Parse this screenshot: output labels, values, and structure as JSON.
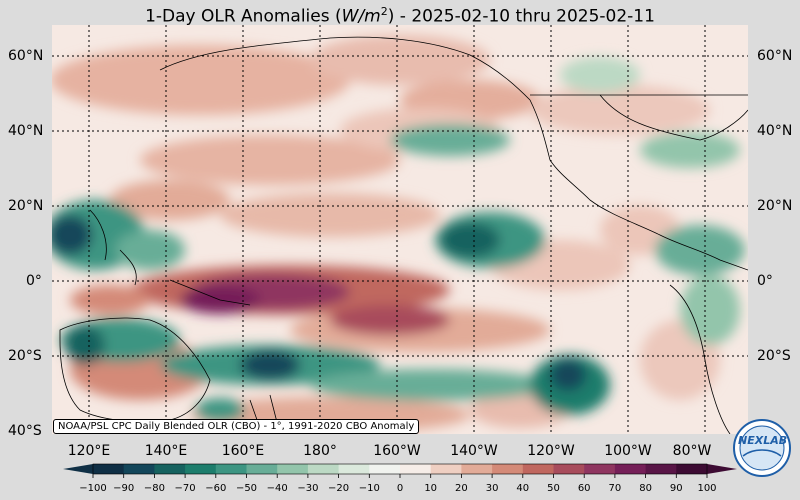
{
  "title": {
    "prefix": "1-Day OLR Anomalies (",
    "unit": "W/m",
    "unit_exp": "2",
    "suffix": ") - 2025-02-10 thru 2025-02-11"
  },
  "map": {
    "lat_labels": [
      "60°N",
      "40°N",
      "20°N",
      "0°",
      "20°S",
      "40°S"
    ],
    "lon_labels": [
      "120°E",
      "140°E",
      "160°E",
      "180°",
      "160°W",
      "140°W",
      "120°W",
      "100°W",
      "80°W"
    ],
    "credit": "NOAA/PSL CPC Daily Blended OLR (CBO) - 1°, 1991-2020 CBO Anomaly"
  },
  "colorbar": {
    "ticks": [
      "−100",
      "−90",
      "−80",
      "−70",
      "−60",
      "−50",
      "−40",
      "−30",
      "−20",
      "−10",
      "0",
      "10",
      "20",
      "30",
      "40",
      "50",
      "60",
      "70",
      "80",
      "90",
      "100"
    ],
    "colors": [
      "#0f2f45",
      "#13465a",
      "#16625f",
      "#1d7d6c",
      "#3d9582",
      "#68ad97",
      "#93c5ab",
      "#bcd9c4",
      "#dbe9dc",
      "#f1f3ef",
      "#f6ede8",
      "#efcfc2",
      "#e2ab98",
      "#d48a78",
      "#c0675f",
      "#a84c5c",
      "#8f3560",
      "#751f58",
      "#591547",
      "#3d0b33"
    ]
  },
  "logo": {
    "text": "NEXLAB"
  },
  "palette": {
    "background": "#dcdcdc",
    "map_base": "#f6e9e3"
  }
}
